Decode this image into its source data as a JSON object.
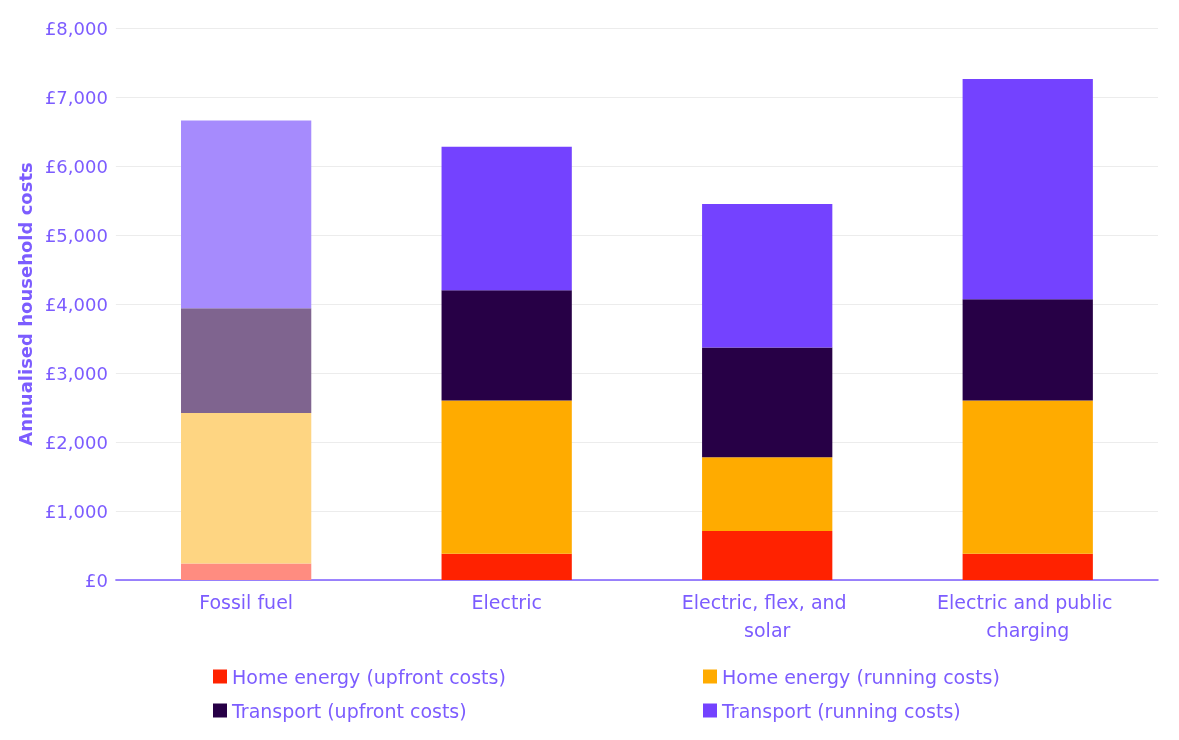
{
  "chart_data": {
    "type": "bar",
    "stacked": true,
    "ylabel": "Annualised household costs",
    "categories": [
      "Fossil fuel",
      "Electric",
      "Electric, flex, and solar",
      "Electric and public charging"
    ],
    "series": [
      {
        "name": "Home energy (upfront costs)",
        "color": "#ff2200",
        "colors": [
          "#ff8c80",
          "#ff2200",
          "#ff2200",
          "#ff2200"
        ],
        "values": [
          240,
          380,
          710,
          380
        ]
      },
      {
        "name": "Home energy (running costs)",
        "color": "#ffab00",
        "colors": [
          "#fed582",
          "#ffab00",
          "#ffab00",
          "#ffab00"
        ],
        "values": [
          2180,
          2220,
          1070,
          2220
        ]
      },
      {
        "name": "Transport (upfront costs)",
        "color": "#270046",
        "colors": [
          "#7f648f",
          "#270046",
          "#270046",
          "#270046"
        ],
        "values": [
          1520,
          1600,
          1590,
          1470
        ]
      },
      {
        "name": "Transport (running costs)",
        "color": "#7442ff",
        "colors": [
          "#a68bfd",
          "#7442ff",
          "#7442ff",
          "#7442ff"
        ],
        "values": [
          2720,
          2080,
          2080,
          3190
        ]
      }
    ],
    "ylim": [
      0,
      8000
    ],
    "yticks": [
      {
        "value": 0,
        "label": "£0"
      },
      {
        "value": 1000,
        "label": "£1,000"
      },
      {
        "value": 2000,
        "label": "£2,000"
      },
      {
        "value": 3000,
        "label": "£3,000"
      },
      {
        "value": 4000,
        "label": "£4,000"
      },
      {
        "value": 5000,
        "label": "£5,000"
      },
      {
        "value": 6000,
        "label": "£6,000"
      },
      {
        "value": 7000,
        "label": "£7,000"
      },
      {
        "value": 8000,
        "label": "£8,000"
      }
    ],
    "grid": "y",
    "legend": "bottom"
  }
}
